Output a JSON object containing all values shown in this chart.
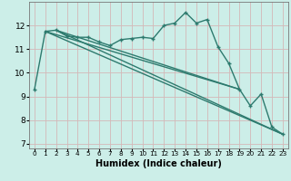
{
  "xlabel": "Humidex (Indice chaleur)",
  "bg_color": "#cceee8",
  "plot_bg_color": "#cceee8",
  "grid_color": "#d4b8b8",
  "line_color": "#2d7a6e",
  "xlim": [
    -0.5,
    23.5
  ],
  "ylim": [
    6.8,
    13.0
  ],
  "yticks": [
    7,
    8,
    9,
    10,
    11,
    12
  ],
  "main_curve": {
    "x": [
      0,
      1,
      2,
      3,
      4,
      5,
      6,
      7,
      8,
      9,
      10,
      11,
      12,
      13,
      14,
      15,
      16,
      17,
      18,
      19,
      20,
      21,
      22,
      23
    ],
    "y": [
      9.3,
      11.75,
      11.8,
      11.55,
      11.5,
      11.5,
      11.3,
      11.15,
      11.4,
      11.45,
      11.5,
      11.45,
      12.0,
      12.1,
      12.55,
      12.1,
      12.25,
      11.1,
      10.4,
      9.3,
      8.6,
      9.1,
      7.7,
      7.4
    ]
  },
  "trend_lines": [
    {
      "x": [
        1,
        23
      ],
      "y": [
        11.75,
        7.4
      ]
    },
    {
      "x": [
        2,
        23
      ],
      "y": [
        11.8,
        7.4
      ]
    },
    {
      "x": [
        1,
        19
      ],
      "y": [
        11.75,
        9.3
      ]
    },
    {
      "x": [
        2,
        19
      ],
      "y": [
        11.8,
        9.3
      ]
    }
  ]
}
